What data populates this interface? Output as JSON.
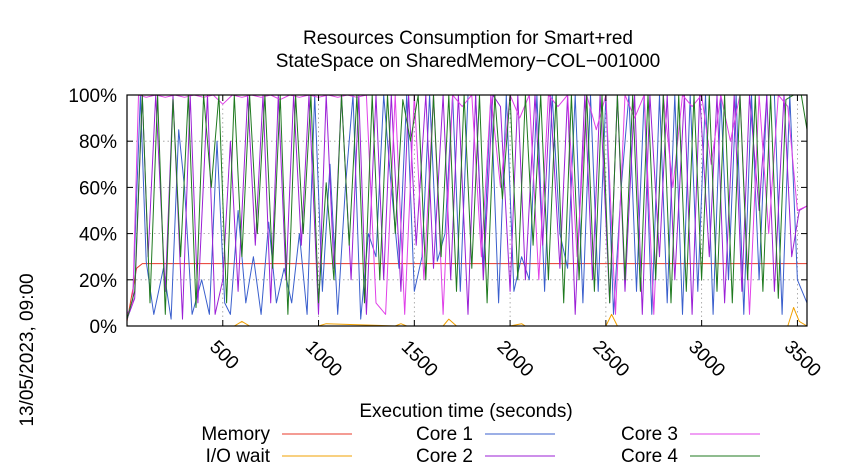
{
  "chart_data": {
    "type": "line",
    "title_lines": [
      "Resources Consumption for Smart+red",
      "StateSpace on SharedMemory−COL−001000"
    ],
    "xlabel": "Execution time (seconds)",
    "ylabel": "",
    "side_label": "13/05/2023, 09:00",
    "xlim": [
      0,
      3550
    ],
    "ylim": [
      0,
      100
    ],
    "x_ticks": [
      500,
      1000,
      1500,
      2000,
      2500,
      3000,
      3500
    ],
    "y_ticks": [
      0,
      20,
      40,
      60,
      80,
      100
    ],
    "y_tick_labels": [
      "0%",
      "20%",
      "40%",
      "60%",
      "80%",
      "100%"
    ],
    "grid": true,
    "legend_position": "bottom",
    "series": [
      {
        "name": "Memory",
        "color": "#e8382a",
        "x": [
          0,
          50,
          80,
          3550
        ],
        "y": [
          2,
          25,
          27,
          27
        ]
      },
      {
        "name": "I/O wait",
        "color": "#f0a000",
        "x": [
          0,
          560,
          600,
          640,
          700,
          1000,
          1040,
          1400,
          1430,
          1460,
          1650,
          1680,
          1720,
          2000,
          2060,
          2080,
          2500,
          2530,
          2560,
          3450,
          3480,
          3510,
          3550
        ],
        "y": [
          0,
          0,
          2,
          0,
          0,
          0,
          1,
          0,
          1,
          0,
          0,
          3,
          0,
          0,
          1,
          0,
          0,
          5,
          0,
          0,
          8,
          2,
          0
        ]
      },
      {
        "name": "Core 1",
        "color": "#3a5fcd",
        "x": [
          0,
          30,
          70,
          100,
          140,
          190,
          230,
          270,
          300,
          340,
          390,
          430,
          470,
          510,
          540,
          580,
          620,
          660,
          700,
          740,
          780,
          820,
          860,
          900,
          940,
          980,
          1020,
          1060,
          1100,
          1140,
          1180,
          1220,
          1260,
          1300,
          1340,
          1380,
          1420,
          1460,
          1500,
          1540,
          1580,
          1620,
          1660,
          1700,
          1740,
          1780,
          1820,
          1860,
          1900,
          1940,
          1980,
          2020,
          2060,
          2100,
          2140,
          2180,
          2220,
          2260,
          2300,
          2340,
          2380,
          2420,
          2460,
          2500,
          2540,
          2580,
          2620,
          2660,
          2700,
          2740,
          2780,
          2820,
          2860,
          2900,
          2940,
          2980,
          3020,
          3060,
          3100,
          3140,
          3180,
          3220,
          3260,
          3300,
          3340,
          3380,
          3420,
          3460,
          3500,
          3550
        ],
        "y": [
          3,
          10,
          100,
          28,
          5,
          25,
          3,
          85,
          60,
          5,
          20,
          5,
          80,
          10,
          5,
          50,
          10,
          30,
          5,
          45,
          10,
          25,
          10,
          40,
          5,
          100,
          15,
          70,
          5,
          60,
          100,
          3,
          40,
          30,
          100,
          60,
          25,
          100,
          15,
          30,
          100,
          28,
          40,
          100,
          15,
          100,
          100,
          25,
          100,
          10,
          100,
          15,
          30,
          20,
          100,
          15,
          100,
          40,
          25,
          100,
          10,
          100,
          15,
          100,
          5,
          60,
          100,
          15,
          100,
          5,
          100,
          10,
          100,
          5,
          100,
          15,
          100,
          5,
          100,
          20,
          100,
          5,
          100,
          20,
          100,
          100,
          5,
          100,
          20,
          10
        ]
      },
      {
        "name": "Core 2",
        "color": "#9b1fd6",
        "x": [
          0,
          40,
          80,
          110,
          150,
          200,
          240,
          290,
          330,
          370,
          420,
          460,
          500,
          540,
          580,
          630,
          670,
          710,
          750,
          790,
          830,
          870,
          910,
          950,
          1000,
          1040,
          1080,
          1120,
          1170,
          1210,
          1250,
          1300,
          1340,
          1380,
          1430,
          1470,
          1510,
          1560,
          1600,
          1650,
          1690,
          1730,
          1780,
          1820,
          1860,
          1910,
          1950,
          2000,
          2040,
          2080,
          2130,
          2170,
          2210,
          2260,
          2300,
          2340,
          2390,
          2430,
          2470,
          2520,
          2560,
          2600,
          2650,
          2690,
          2730,
          2780,
          2820,
          2860,
          2910,
          2950,
          2990,
          3040,
          3080,
          3120,
          3170,
          3210,
          3250,
          3300,
          3340,
          3380,
          3430,
          3470,
          3510,
          3550
        ],
        "y": [
          3,
          12,
          100,
          30,
          100,
          15,
          100,
          3,
          100,
          10,
          100,
          5,
          20,
          80,
          15,
          100,
          35,
          100,
          10,
          100,
          20,
          100,
          35,
          100,
          5,
          100,
          25,
          100,
          20,
          100,
          5,
          100,
          20,
          100,
          15,
          100,
          35,
          100,
          25,
          100,
          20,
          100,
          5,
          100,
          20,
          100,
          95,
          15,
          100,
          20,
          100,
          35,
          100,
          25,
          100,
          5,
          100,
          20,
          100,
          10,
          100,
          15,
          100,
          5,
          100,
          30,
          100,
          20,
          100,
          5,
          100,
          30,
          100,
          10,
          100,
          15,
          100,
          50,
          100,
          15,
          100,
          30,
          50,
          52
        ]
      },
      {
        "name": "Core 3",
        "color": "#e040e8",
        "x": [
          0,
          30,
          60,
          100,
          150,
          200,
          250,
          300,
          350,
          400,
          450,
          500,
          550,
          600,
          650,
          700,
          750,
          800,
          850,
          900,
          950,
          1000,
          1050,
          1100,
          1150,
          1200,
          1250,
          1300,
          1350,
          1400,
          1450,
          1500,
          1550,
          1600,
          1650,
          1700,
          1750,
          1800,
          1850,
          1900,
          1950,
          2000,
          2050,
          2100,
          2150,
          2200,
          2250,
          2300,
          2350,
          2400,
          2450,
          2500,
          2550,
          2600,
          2650,
          2700,
          2750,
          2800,
          2850,
          2900,
          2950,
          3000,
          3050,
          3100,
          3150,
          3200,
          3250,
          3300,
          3350,
          3400,
          3450,
          3500,
          3550
        ],
        "y": [
          5,
          10,
          100,
          99,
          100,
          99,
          100,
          99,
          100,
          99,
          100,
          96,
          100,
          99,
          100,
          99,
          100,
          98,
          100,
          99,
          100,
          99,
          100,
          99,
          100,
          99,
          100,
          10,
          5,
          100,
          5,
          100,
          20,
          100,
          5,
          100,
          95,
          100,
          30,
          100,
          60,
          100,
          90,
          100,
          20,
          100,
          95,
          100,
          30,
          100,
          85,
          100,
          5,
          100,
          90,
          100,
          5,
          100,
          60,
          100,
          95,
          100,
          70,
          100,
          80,
          100,
          5,
          100,
          40,
          100,
          95,
          50,
          52
        ]
      },
      {
        "name": "Core 4",
        "color": "#1f7a1f",
        "x": [
          0,
          40,
          80,
          120,
          160,
          200,
          240,
          280,
          320,
          360,
          400,
          440,
          480,
          520,
          560,
          600,
          640,
          680,
          720,
          760,
          800,
          840,
          880,
          920,
          960,
          1000,
          1040,
          1080,
          1120,
          1160,
          1200,
          1240,
          1280,
          1320,
          1360,
          1400,
          1440,
          1480,
          1520,
          1560,
          1600,
          1640,
          1680,
          1720,
          1760,
          1800,
          1840,
          1880,
          1920,
          1960,
          2000,
          2040,
          2080,
          2120,
          2160,
          2200,
          2240,
          2280,
          2320,
          2360,
          2400,
          2440,
          2480,
          2520,
          2560,
          2600,
          2640,
          2680,
          2720,
          2760,
          2800,
          2840,
          2880,
          2920,
          2960,
          3000,
          3040,
          3080,
          3120,
          3160,
          3200,
          3240,
          3280,
          3320,
          3360,
          3400,
          3440,
          3480,
          3520,
          3550
        ],
        "y": [
          3,
          15,
          100,
          10,
          100,
          5,
          98,
          30,
          100,
          8,
          100,
          60,
          100,
          10,
          100,
          30,
          100,
          40,
          100,
          25,
          100,
          5,
          100,
          40,
          100,
          10,
          62,
          20,
          100,
          35,
          100,
          10,
          100,
          20,
          100,
          40,
          98,
          80,
          100,
          20,
          100,
          30,
          100,
          15,
          100,
          25,
          100,
          10,
          100,
          55,
          100,
          20,
          100,
          35,
          100,
          20,
          100,
          10,
          100,
          20,
          100,
          15,
          100,
          10,
          100,
          20,
          100,
          15,
          100,
          20,
          100,
          10,
          100,
          15,
          100,
          20,
          100,
          15,
          100,
          10,
          100,
          20,
          100,
          15,
          100,
          12,
          98,
          100,
          100,
          85
        ]
      }
    ]
  }
}
